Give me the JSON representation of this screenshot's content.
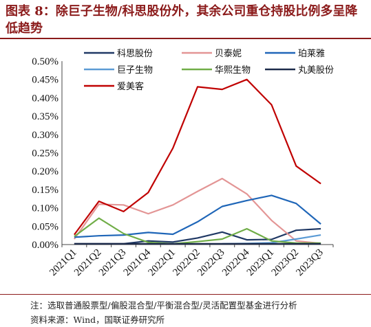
{
  "title": "图表 8：除巨子生物/科思股份外，其余公司重仓持股比例多呈降低趋势",
  "note": "注：选取普通股票型/偏股混合型/平衡混合型/灵活配置型基金进行分析",
  "source": "资料来源：Wind，国联证券研究所",
  "chart_data": {
    "type": "line",
    "x": [
      "2021Q1",
      "2021Q2",
      "2021Q3",
      "2021Q4",
      "2022Q1",
      "2022Q2",
      "2022Q3",
      "2022Q4",
      "2023Q1",
      "2023Q2",
      "2023Q3"
    ],
    "ylim": [
      0,
      0.5
    ],
    "yticks": [
      "0.00%",
      "0.05%",
      "0.10%",
      "0.15%",
      "0.20%",
      "0.25%",
      "0.30%",
      "0.35%",
      "0.40%",
      "0.45%",
      "0.50%"
    ],
    "series": [
      {
        "name": "科思股份",
        "color": "#1f3864",
        "values": [
          0.002,
          0.002,
          0.002,
          0.01,
          0.007,
          0.018,
          0.034,
          0.013,
          0.014,
          0.039,
          0.043
        ]
      },
      {
        "name": "贝泰妮",
        "color": "#e39595",
        "values": [
          0.015,
          0.11,
          0.108,
          0.084,
          0.108,
          0.145,
          0.18,
          0.138,
          0.066,
          0.01,
          0.003
        ]
      },
      {
        "name": "珀莱雅",
        "color": "#1f66b8",
        "values": [
          0.02,
          0.024,
          0.026,
          0.033,
          0.028,
          0.062,
          0.104,
          0.12,
          0.134,
          0.112,
          0.056
        ]
      },
      {
        "name": "巨子生物",
        "color": "#5b9bd5",
        "values": [
          null,
          null,
          null,
          null,
          null,
          null,
          0.002,
          0.003,
          0.005,
          0.015,
          0.026
        ]
      },
      {
        "name": "华熙生物",
        "color": "#70ad47",
        "values": [
          0.022,
          0.072,
          0.03,
          0.006,
          0.002,
          0.008,
          0.015,
          0.043,
          0.01,
          0.004,
          0.004
        ]
      },
      {
        "name": "丸美股份",
        "color": "#1c2a4a",
        "values": [
          0.002,
          0.002,
          0.002,
          0.002,
          0.002,
          0.002,
          0.002,
          0.002,
          0.002,
          0.002,
          0.002
        ]
      },
      {
        "name": "爱美客",
        "color": "#c00000",
        "values": [
          0.027,
          0.118,
          0.09,
          0.142,
          0.263,
          0.43,
          0.423,
          0.45,
          0.381,
          0.214,
          0.166
        ]
      }
    ],
    "legend_position": "top"
  }
}
